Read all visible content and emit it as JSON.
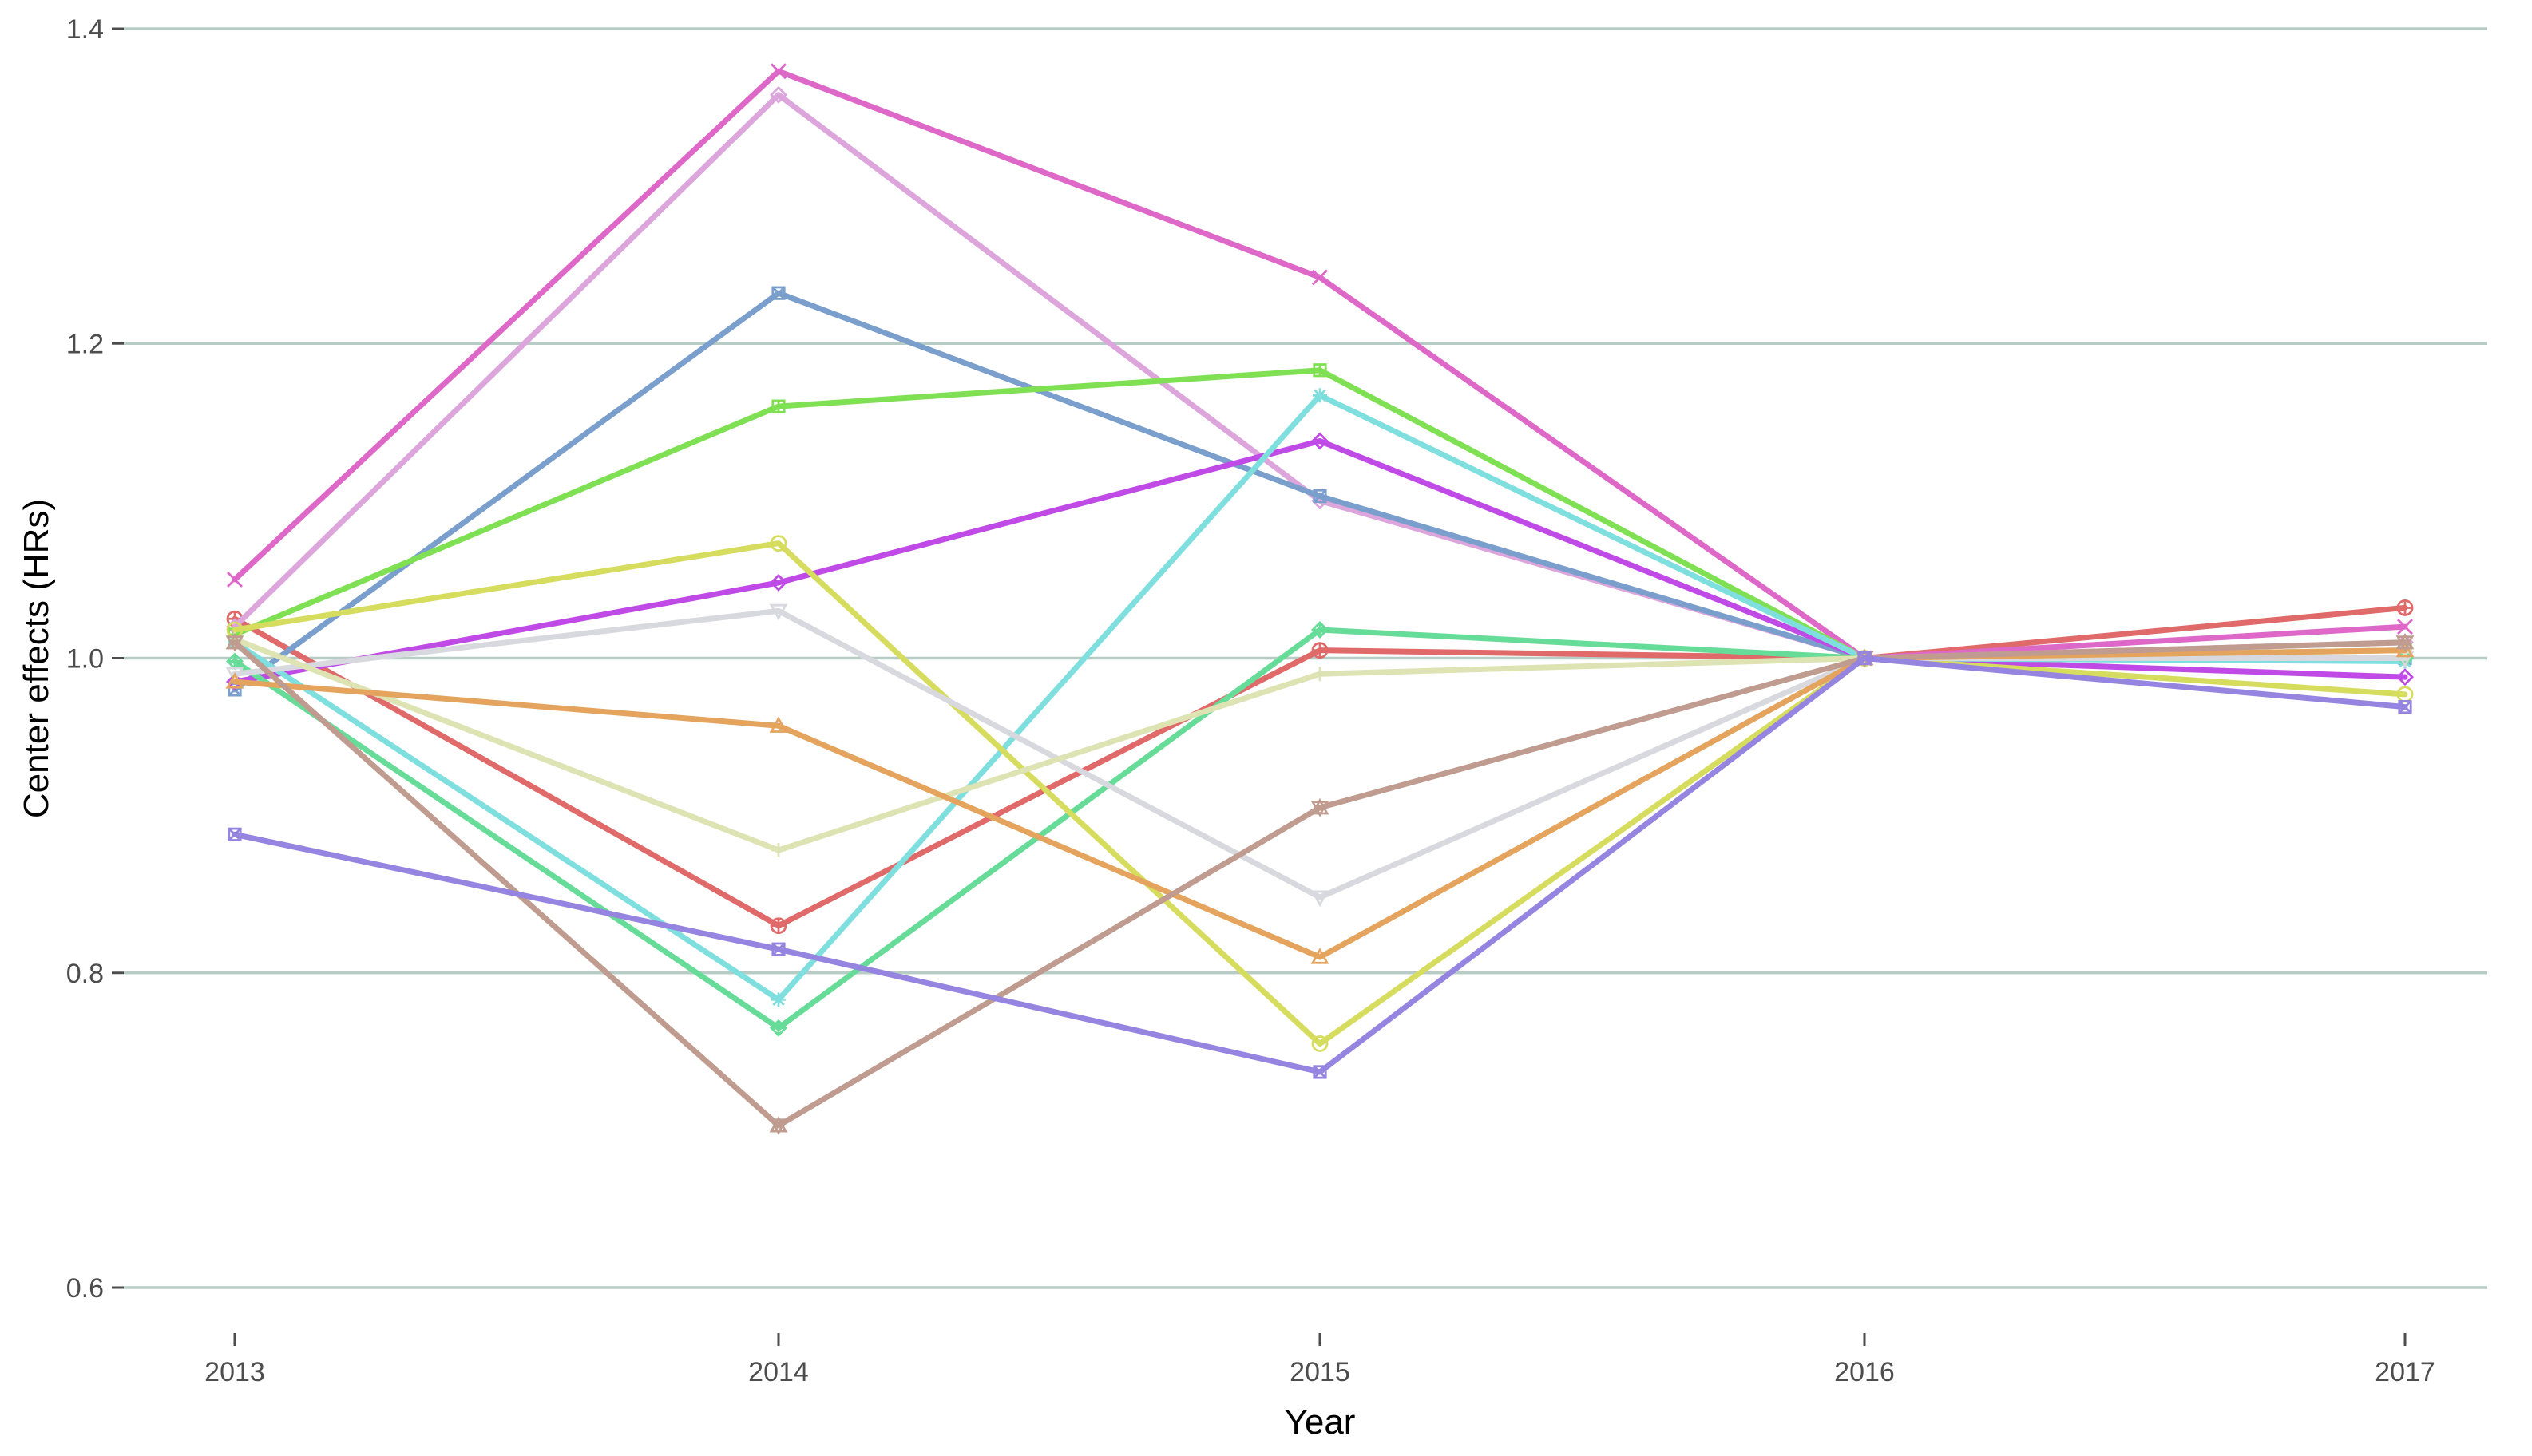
{
  "chart_data": {
    "type": "line",
    "title": "",
    "xlabel": "Year",
    "ylabel": "Center effects (HRs)",
    "x": [
      2013,
      2014,
      2015,
      2016,
      2017
    ],
    "x_tick_labels": [
      "2013",
      "2014",
      "2015",
      "2016",
      "2017"
    ],
    "y_ticks": [
      0.6,
      0.8,
      1.0,
      1.2,
      1.4
    ],
    "y_tick_labels": [
      "0.6",
      "0.8",
      "1.0",
      "1.2",
      "1.4"
    ],
    "ylim": [
      0.57,
      1.42
    ],
    "grid": "horizontal",
    "legend": "none",
    "series": [
      {
        "color": "#e06a6a",
        "marker": "circle-plus",
        "values": [
          1.025,
          0.83,
          1.005,
          1.0,
          1.032
        ]
      },
      {
        "color": "#dd68c8",
        "marker": "x",
        "values": [
          1.05,
          1.373,
          1.242,
          1.0,
          1.02
        ]
      },
      {
        "color": "#dca5db",
        "marker": "diamond",
        "values": [
          1.02,
          1.358,
          1.1,
          1.0,
          1.01
        ]
      },
      {
        "color": "#7a9fcc",
        "marker": "square-x",
        "values": [
          0.98,
          1.232,
          1.103,
          1.0,
          1.0
        ]
      },
      {
        "color": "#80e053",
        "marker": "square-plus",
        "values": [
          1.015,
          1.16,
          1.183,
          1.0,
          1.005
        ]
      },
      {
        "color": "#bf4ae6",
        "marker": "diamond",
        "values": [
          0.985,
          1.048,
          1.138,
          1.0,
          0.988
        ]
      },
      {
        "color": "#7fdede",
        "marker": "asterisk",
        "values": [
          1.01,
          0.783,
          1.167,
          1.0,
          0.998
        ]
      },
      {
        "color": "#67dc98",
        "marker": "diamond-plus",
        "values": [
          0.998,
          0.765,
          1.018,
          1.0,
          1.0
        ]
      },
      {
        "color": "#d6dc5e",
        "marker": "circle",
        "values": [
          1.018,
          1.073,
          0.755,
          1.0,
          0.977
        ]
      },
      {
        "color": "#d8d8df",
        "marker": "triangle-down",
        "values": [
          0.99,
          1.03,
          0.848,
          1.0,
          1.0
        ]
      },
      {
        "color": "#dde3b2",
        "marker": "plus",
        "values": [
          1.012,
          0.878,
          0.99,
          1.0,
          1.005
        ]
      },
      {
        "color": "#e4a45e",
        "marker": "triangle",
        "values": [
          0.985,
          0.957,
          0.81,
          1.0,
          1.005
        ]
      },
      {
        "color": "#bf9c8f",
        "marker": "triangle-star",
        "values": [
          1.01,
          0.703,
          0.905,
          1.0,
          1.01
        ]
      },
      {
        "color": "#9585e0",
        "marker": "square-x",
        "values": [
          0.888,
          0.815,
          0.737,
          1.0,
          0.969
        ]
      }
    ]
  }
}
